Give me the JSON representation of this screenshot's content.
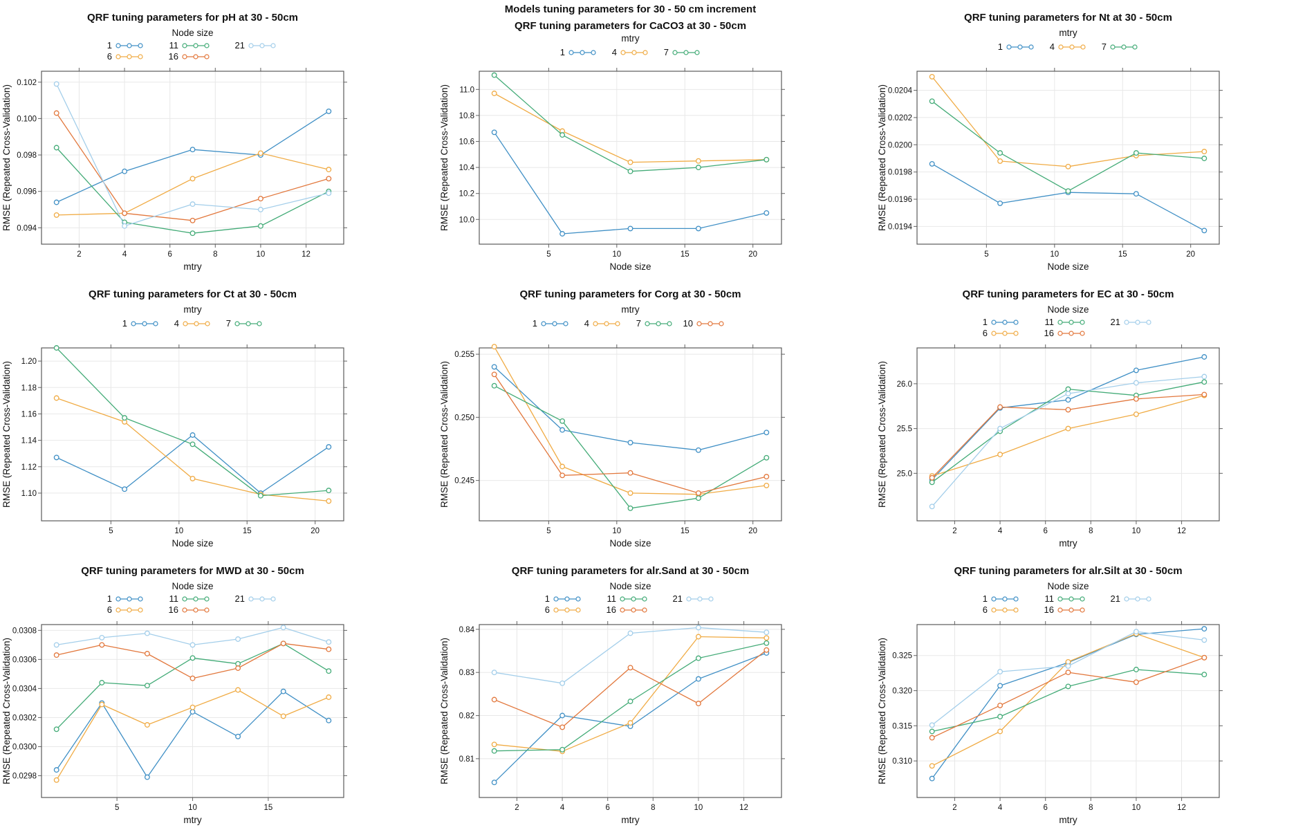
{
  "figure": {
    "ylabel": "RMSE (Repeated Cross-Validation)",
    "palette": {
      "blue": "#3F8FC5",
      "gold": "#F0AB44",
      "green": "#43AB77",
      "orange": "#E2773C",
      "lightblue": "#A3CEEA"
    },
    "axis_colors": {
      "box": "#5a5a5a",
      "tick": "#707070",
      "grid": "#e8e8e8",
      "text": "#111111"
    }
  },
  "chart_data": [
    {
      "id": "ph",
      "type": "line",
      "title_lines": [
        "QRF tuning parameters for pH at 30 - 50cm"
      ],
      "legend": {
        "title": "Node size",
        "layout": "3x2"
      },
      "xlabel": "mtry",
      "ylabel": "RMSE (Repeated Cross-Validation)",
      "x": [
        1,
        4,
        7,
        10,
        13
      ],
      "xticks": [
        2,
        4,
        6,
        8,
        10,
        12
      ],
      "xlim": [
        0.34,
        13.66
      ],
      "yticks": [
        0.094,
        0.096,
        0.098,
        0.1,
        0.102
      ],
      "ytick_labels": [
        "0.094",
        "0.096",
        "0.098",
        "0.100",
        "0.102"
      ],
      "ylim": [
        0.0931,
        0.1026
      ],
      "series": [
        {
          "name": "1",
          "color": "blue",
          "values": [
            0.0954,
            0.0971,
            0.0983,
            0.098,
            0.1004
          ]
        },
        {
          "name": "6",
          "color": "gold",
          "values": [
            0.0947,
            0.0948,
            0.0967,
            0.0981,
            0.0972
          ]
        },
        {
          "name": "11",
          "color": "green",
          "values": [
            0.0984,
            0.0943,
            0.0937,
            0.0941,
            0.096
          ]
        },
        {
          "name": "16",
          "color": "orange",
          "values": [
            0.1003,
            0.0948,
            0.0944,
            0.0956,
            0.0967
          ]
        },
        {
          "name": "21",
          "color": "lightblue",
          "values": [
            0.1019,
            0.0941,
            0.0953,
            0.095,
            0.0959
          ]
        }
      ]
    },
    {
      "id": "caco3",
      "type": "line",
      "title_lines": [
        "Models tuning parameters for 30 - 50 cm increment",
        "QRF tuning parameters for CaCO3 at 30 - 50cm"
      ],
      "legend": {
        "title": "mtry",
        "layout": "1x3"
      },
      "xlabel": "Node size",
      "ylabel": "RMSE (Repeated Cross-Validation)",
      "x": [
        1,
        6,
        11,
        16,
        21
      ],
      "xticks": [
        5,
        10,
        15,
        20
      ],
      "xlim": [
        -0.1,
        22.1
      ],
      "yticks": [
        10.0,
        10.2,
        10.4,
        10.6,
        10.8,
        11.0
      ],
      "ytick_labels": [
        "10.0",
        "10.2",
        "10.4",
        "10.6",
        "10.8",
        "11.0"
      ],
      "ylim": [
        9.81,
        11.14
      ],
      "series": [
        {
          "name": "1",
          "color": "blue",
          "values": [
            10.67,
            9.89,
            9.93,
            9.93,
            10.05
          ]
        },
        {
          "name": "4",
          "color": "gold",
          "values": [
            10.97,
            10.68,
            10.44,
            10.45,
            10.46
          ]
        },
        {
          "name": "7",
          "color": "green",
          "values": [
            11.11,
            10.65,
            10.37,
            10.4,
            10.46
          ]
        }
      ]
    },
    {
      "id": "nt",
      "type": "line",
      "title_lines": [
        "QRF tuning parameters for Nt at 30 - 50cm"
      ],
      "legend": {
        "title": "mtry",
        "layout": "1x3"
      },
      "xlabel": "Node size",
      "ylabel": "RMSE (Repeated Cross-Validation)",
      "x": [
        1,
        6,
        11,
        16,
        21
      ],
      "xticks": [
        5,
        10,
        15,
        20
      ],
      "xlim": [
        -0.1,
        22.1
      ],
      "yticks": [
        0.0194,
        0.0196,
        0.0198,
        0.02,
        0.0202,
        0.0204
      ],
      "ytick_labels": [
        "0.0194",
        "0.0196",
        "0.0198",
        "0.0200",
        "0.0202",
        "0.0204"
      ],
      "ylim": [
        0.01927,
        0.02054
      ],
      "series": [
        {
          "name": "1",
          "color": "blue",
          "values": [
            0.01986,
            0.01957,
            0.01965,
            0.01964,
            0.01937
          ]
        },
        {
          "name": "4",
          "color": "gold",
          "values": [
            0.0205,
            0.01988,
            0.01984,
            0.01992,
            0.01995
          ]
        },
        {
          "name": "7",
          "color": "green",
          "values": [
            0.02032,
            0.01994,
            0.01966,
            0.01994,
            0.0199
          ]
        }
      ]
    },
    {
      "id": "ct",
      "type": "line",
      "title_lines": [
        "QRF tuning parameters for Ct at 30 - 50cm"
      ],
      "legend": {
        "title": "mtry",
        "layout": "1x3"
      },
      "xlabel": "Node size",
      "ylabel": "RMSE (Repeated Cross-Validation)",
      "x": [
        1,
        6,
        11,
        16,
        21
      ],
      "xticks": [
        5,
        10,
        15,
        20
      ],
      "xlim": [
        -0.1,
        22.1
      ],
      "yticks": [
        1.1,
        1.12,
        1.14,
        1.16,
        1.18,
        1.2
      ],
      "ytick_labels": [
        "1.10",
        "1.12",
        "1.14",
        "1.16",
        "1.18",
        "1.20"
      ],
      "ylim": [
        1.079,
        1.21
      ],
      "series": [
        {
          "name": "1",
          "color": "blue",
          "values": [
            1.127,
            1.103,
            1.144,
            1.1,
            1.135
          ]
        },
        {
          "name": "4",
          "color": "gold",
          "values": [
            1.172,
            1.154,
            1.111,
            1.099,
            1.094
          ]
        },
        {
          "name": "7",
          "color": "green",
          "values": [
            1.21,
            1.157,
            1.137,
            1.098,
            1.102
          ]
        }
      ]
    },
    {
      "id": "corg",
      "type": "line",
      "title_lines": [
        "QRF tuning parameters for Corg at 30 - 50cm"
      ],
      "legend": {
        "title": "mtry",
        "layout": "1x4"
      },
      "xlabel": "Node size",
      "ylabel": "RMSE (Repeated Cross-Validation)",
      "x": [
        1,
        6,
        11,
        16,
        21
      ],
      "xticks": [
        5,
        10,
        15,
        20
      ],
      "xlim": [
        -0.1,
        22.1
      ],
      "yticks": [
        0.245,
        0.25,
        0.255
      ],
      "ytick_labels": [
        "0.245",
        "0.250",
        "0.255"
      ],
      "ylim": [
        0.2418,
        0.2555
      ],
      "series": [
        {
          "name": "1",
          "color": "blue",
          "values": [
            0.254,
            0.249,
            0.248,
            0.2474,
            0.2488
          ]
        },
        {
          "name": "4",
          "color": "gold",
          "values": [
            0.2556,
            0.2461,
            0.244,
            0.2439,
            0.2446
          ]
        },
        {
          "name": "7",
          "color": "green",
          "values": [
            0.2525,
            0.2497,
            0.2428,
            0.2436,
            0.2468
          ]
        },
        {
          "name": "10",
          "color": "orange",
          "values": [
            0.2534,
            0.2454,
            0.2456,
            0.244,
            0.2453
          ]
        }
      ]
    },
    {
      "id": "ec",
      "type": "line",
      "title_lines": [
        "QRF tuning parameters for EC at 30 - 50cm"
      ],
      "legend": {
        "title": "Node size",
        "layout": "3x2"
      },
      "xlabel": "mtry",
      "ylabel": "RMSE (Repeated Cross-Validation)",
      "x": [
        1,
        4,
        7,
        10,
        13
      ],
      "xticks": [
        2,
        4,
        6,
        8,
        10,
        12
      ],
      "xlim": [
        0.34,
        13.66
      ],
      "yticks": [
        25.0,
        25.5,
        26.0
      ],
      "ytick_labels": [
        "25.0",
        "25.5",
        "26.0"
      ],
      "ylim": [
        24.47,
        26.4
      ],
      "series": [
        {
          "name": "1",
          "color": "blue",
          "values": [
            24.93,
            25.73,
            25.82,
            26.15,
            26.3
          ]
        },
        {
          "name": "6",
          "color": "gold",
          "values": [
            24.97,
            25.21,
            25.5,
            25.66,
            25.87
          ]
        },
        {
          "name": "11",
          "color": "green",
          "values": [
            24.9,
            25.47,
            25.94,
            25.87,
            26.02
          ]
        },
        {
          "name": "16",
          "color": "orange",
          "values": [
            24.95,
            25.74,
            25.71,
            25.83,
            25.88
          ]
        },
        {
          "name": "21",
          "color": "lightblue",
          "values": [
            24.63,
            25.5,
            25.89,
            26.01,
            26.08
          ]
        }
      ]
    },
    {
      "id": "mwd",
      "type": "line",
      "title_lines": [
        "QRF tuning parameters for MWD at 30 - 50cm"
      ],
      "legend": {
        "title": "Node size",
        "layout": "3x2"
      },
      "xlabel": "mtry",
      "ylabel": "RMSE (Repeated Cross-Validation)",
      "x": [
        1,
        4,
        7,
        10,
        13,
        16,
        19
      ],
      "xticks": [
        5,
        10,
        15
      ],
      "xlim": [
        0.01,
        19.99
      ],
      "yticks": [
        0.0298,
        0.03,
        0.0302,
        0.0304,
        0.0306,
        0.0308
      ],
      "ytick_labels": [
        "0.0298",
        "0.0300",
        "0.0302",
        "0.0304",
        "0.0306",
        "0.0308"
      ],
      "ylim": [
        0.02965,
        0.03084
      ],
      "series": [
        {
          "name": "1",
          "color": "blue",
          "values": [
            0.02984,
            0.0303,
            0.02979,
            0.03024,
            0.03007,
            0.03038,
            0.03018
          ]
        },
        {
          "name": "6",
          "color": "gold",
          "values": [
            0.02977,
            0.03029,
            0.03015,
            0.03027,
            0.03039,
            0.03021,
            0.03034
          ]
        },
        {
          "name": "11",
          "color": "green",
          "values": [
            0.03012,
            0.03044,
            0.03042,
            0.03061,
            0.03057,
            0.03071,
            0.03052
          ]
        },
        {
          "name": "16",
          "color": "orange",
          "values": [
            0.03063,
            0.0307,
            0.03064,
            0.03047,
            0.03054,
            0.03071,
            0.03067
          ]
        },
        {
          "name": "21",
          "color": "lightblue",
          "values": [
            0.0307,
            0.03075,
            0.03078,
            0.0307,
            0.03074,
            0.03082,
            0.03072
          ]
        }
      ]
    },
    {
      "id": "alr-sand",
      "type": "line",
      "title_lines": [
        "QRF tuning parameters for alr.Sand at 30 - 50cm"
      ],
      "legend": {
        "title": "Node size",
        "layout": "3x2"
      },
      "xlabel": "mtry",
      "ylabel": "RMSE (Repeated Cross-Validation)",
      "x": [
        1,
        4,
        7,
        10,
        13
      ],
      "xticks": [
        2,
        4,
        6,
        8,
        10,
        12
      ],
      "xlim": [
        0.34,
        13.66
      ],
      "yticks": [
        0.81,
        0.82,
        0.83,
        0.84
      ],
      "ytick_labels": [
        "0.81",
        "0.82",
        "0.83",
        "0.84"
      ],
      "ylim": [
        0.801,
        0.8411
      ],
      "series": [
        {
          "name": "1",
          "color": "blue",
          "values": [
            0.8045,
            0.82,
            0.8175,
            0.8285,
            0.8345
          ]
        },
        {
          "name": "6",
          "color": "gold",
          "values": [
            0.8133,
            0.8117,
            0.8183,
            0.8383,
            0.838
          ]
        },
        {
          "name": "11",
          "color": "green",
          "values": [
            0.8118,
            0.8121,
            0.8233,
            0.8333,
            0.8368
          ]
        },
        {
          "name": "16",
          "color": "orange",
          "values": [
            0.8237,
            0.8173,
            0.8311,
            0.8228,
            0.8352
          ]
        },
        {
          "name": "21",
          "color": "lightblue",
          "values": [
            0.83,
            0.8275,
            0.8391,
            0.8404,
            0.8393
          ]
        }
      ]
    },
    {
      "id": "alr-silt",
      "type": "line",
      "title_lines": [
        "QRF tuning parameters for alr.Silt at 30 - 50cm"
      ],
      "legend": {
        "title": "Node size",
        "layout": "3x2"
      },
      "xlabel": "mtry",
      "ylabel": "RMSE (Repeated Cross-Validation)",
      "x": [
        1,
        4,
        7,
        10,
        13
      ],
      "xticks": [
        2,
        4,
        6,
        8,
        10,
        12
      ],
      "xlim": [
        0.34,
        13.66
      ],
      "yticks": [
        0.31,
        0.315,
        0.32,
        0.325
      ],
      "ytick_labels": [
        "0.310",
        "0.315",
        "0.320",
        "0.325"
      ],
      "ylim": [
        0.3048,
        0.3294
      ],
      "series": [
        {
          "name": "1",
          "color": "blue",
          "values": [
            0.3075,
            0.3207,
            0.324,
            0.328,
            0.3288
          ]
        },
        {
          "name": "6",
          "color": "gold",
          "values": [
            0.3093,
            0.3142,
            0.3241,
            0.3281,
            0.3247
          ]
        },
        {
          "name": "11",
          "color": "green",
          "values": [
            0.3142,
            0.3163,
            0.3206,
            0.323,
            0.3223
          ]
        },
        {
          "name": "16",
          "color": "orange",
          "values": [
            0.3133,
            0.3179,
            0.3226,
            0.3212,
            0.3247
          ]
        },
        {
          "name": "21",
          "color": "lightblue",
          "values": [
            0.3151,
            0.3227,
            0.3235,
            0.3284,
            0.3272
          ]
        }
      ]
    }
  ]
}
